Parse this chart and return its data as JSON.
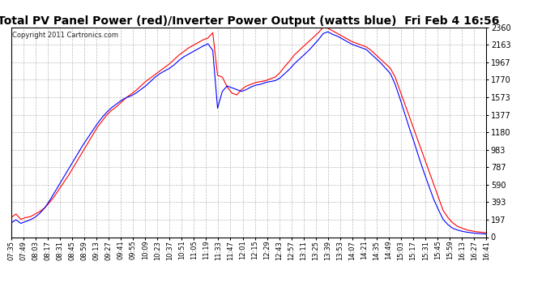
{
  "title": "Total PV Panel Power (red)/Inverter Power Output (watts blue)  Fri Feb 4 16:56",
  "copyright": "Copyright 2011 Cartronics.com",
  "y_max": 2359.9,
  "y_min": 0.0,
  "y_ticks": [
    0.0,
    196.7,
    393.3,
    590.0,
    786.6,
    983.3,
    1180.0,
    1376.6,
    1573.3,
    1770.0,
    1966.6,
    2163.3,
    2359.9
  ],
  "x_labels": [
    "07:35",
    "07:49",
    "08:03",
    "08:17",
    "08:31",
    "08:45",
    "08:59",
    "09:13",
    "09:27",
    "09:41",
    "09:55",
    "10:09",
    "10:23",
    "10:37",
    "10:51",
    "11:05",
    "11:19",
    "11:33",
    "11:47",
    "12:01",
    "12:15",
    "12:29",
    "12:43",
    "12:57",
    "13:11",
    "13:25",
    "13:39",
    "13:53",
    "14:07",
    "14:21",
    "14:35",
    "14:49",
    "15:03",
    "15:17",
    "15:31",
    "15:45",
    "15:59",
    "16:13",
    "16:27",
    "16:41"
  ],
  "background_color": "#ffffff",
  "grid_color": "#aaaaaa",
  "red_color": "#ff0000",
  "blue_color": "#0000ff",
  "title_fontsize": 10,
  "red_data": [
    220,
    260,
    200,
    220,
    230,
    260,
    290,
    330,
    390,
    460,
    540,
    620,
    700,
    790,
    880,
    970,
    1060,
    1150,
    1240,
    1310,
    1380,
    1430,
    1470,
    1520,
    1570,
    1610,
    1650,
    1700,
    1750,
    1790,
    1830,
    1870,
    1910,
    1950,
    2000,
    2050,
    2090,
    2130,
    2160,
    2190,
    2220,
    2240,
    2300,
    1820,
    1800,
    1690,
    1620,
    1600,
    1660,
    1700,
    1720,
    1740,
    1750,
    1760,
    1780,
    1800,
    1850,
    1920,
    1980,
    2050,
    2100,
    2150,
    2200,
    2250,
    2300,
    2360,
    2350,
    2320,
    2290,
    2260,
    2230,
    2200,
    2180,
    2160,
    2140,
    2100,
    2050,
    2000,
    1950,
    1900,
    1800,
    1650,
    1500,
    1350,
    1200,
    1050,
    900,
    750,
    600,
    450,
    300,
    220,
    160,
    120,
    100,
    80,
    70,
    60,
    55,
    50
  ],
  "blue_data": [
    160,
    195,
    155,
    175,
    195,
    225,
    270,
    330,
    410,
    500,
    590,
    680,
    770,
    860,
    950,
    1040,
    1120,
    1200,
    1280,
    1350,
    1410,
    1460,
    1500,
    1540,
    1570,
    1590,
    1620,
    1660,
    1700,
    1750,
    1800,
    1840,
    1870,
    1900,
    1940,
    1990,
    2030,
    2060,
    2090,
    2120,
    2150,
    2175,
    2100,
    1450,
    1640,
    1700,
    1680,
    1660,
    1640,
    1660,
    1690,
    1710,
    1720,
    1740,
    1750,
    1760,
    1790,
    1840,
    1890,
    1950,
    2000,
    2050,
    2100,
    2160,
    2220,
    2290,
    2310,
    2280,
    2260,
    2230,
    2200,
    2170,
    2150,
    2130,
    2110,
    2060,
    2010,
    1960,
    1900,
    1840,
    1720,
    1560,
    1390,
    1220,
    1060,
    890,
    730,
    580,
    430,
    310,
    200,
    140,
    100,
    80,
    65,
    55,
    48,
    42,
    38,
    35
  ]
}
